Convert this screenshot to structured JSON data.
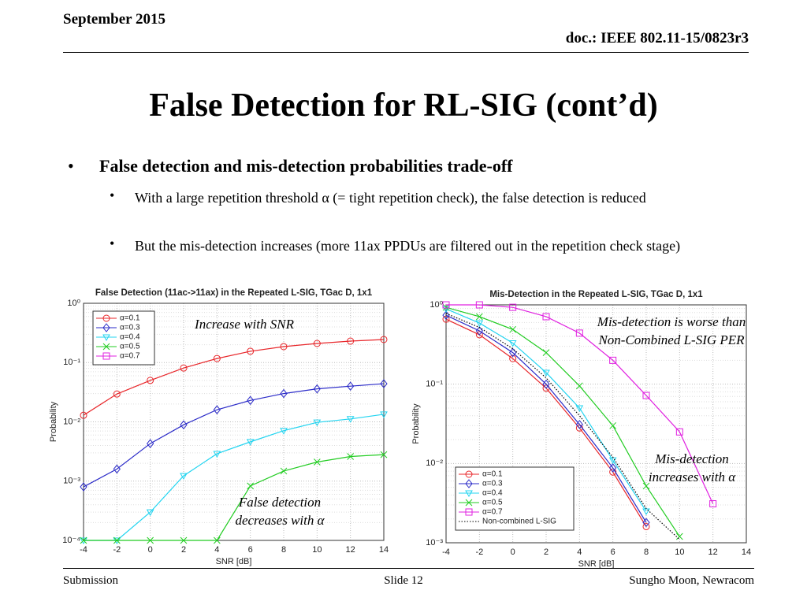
{
  "header": {
    "date": "September 2015",
    "doc": "doc.: IEEE 802.11-15/0823r3"
  },
  "title": "False Detection for RL-SIG (cont’d)",
  "bullets": [
    {
      "text": "False detection and mis-detection probabilities trade-off",
      "sub": [
        "With a large repetition threshold α (= tight repetition check), the false detection is reduced",
        "But the mis-detection increases (more 11ax PPDUs are filtered out in the repetition check stage)"
      ]
    }
  ],
  "chart_data": [
    {
      "type": "line",
      "title": "False Detection (11ac->11ax) in the Repeated L-SIG, TGac D, 1x1",
      "xlabel": "SNR [dB]",
      "ylabel": "Probability",
      "x": [
        -4,
        -2,
        0,
        2,
        4,
        6,
        8,
        10,
        12,
        14
      ],
      "xlim": [
        -4,
        14
      ],
      "xticks": [
        -4,
        -2,
        0,
        2,
        4,
        6,
        8,
        10,
        12,
        14
      ],
      "ylim": [
        0.0001,
        1
      ],
      "yticks": [
        {
          "value": 0.0001,
          "label": "10⁻⁴"
        },
        {
          "value": 0.001,
          "label": "10⁻³"
        },
        {
          "value": 0.01,
          "label": "10⁻²"
        },
        {
          "value": 0.1,
          "label": "10⁻¹"
        },
        {
          "value": 1,
          "label": "10⁰"
        }
      ],
      "log_y": true,
      "grid": true,
      "legend": "upper left",
      "series": [
        {
          "name": "α=0.1",
          "color": "#e8262a",
          "marker": "o",
          "values": [
            0.0129,
            0.0295,
            0.05,
            0.081,
            0.117,
            0.155,
            0.186,
            0.21,
            0.23,
            0.245
          ]
        },
        {
          "name": "α=0.3",
          "color": "#2a2ac8",
          "marker": "d",
          "values": [
            0.0008,
            0.0016,
            0.0043,
            0.0089,
            0.016,
            0.023,
            0.03,
            0.036,
            0.04,
            0.044
          ]
        },
        {
          "name": "α=0.4",
          "color": "#22d4f0",
          "marker": "v",
          "values": [
            0.0001,
            0.0001,
            0.0003,
            0.00123,
            0.0029,
            0.0046,
            0.0071,
            0.0098,
            0.0112,
            0.0134
          ]
        },
        {
          "name": "α=0.5",
          "color": "#22cc22",
          "marker": "x",
          "values": [
            0.0001,
            0.0001,
            0.0001,
            0.0001,
            0.0001,
            0.00083,
            0.00148,
            0.0021,
            0.0026,
            0.0028
          ]
        },
        {
          "name": "α=0.7",
          "color": "#e020e0",
          "marker": "s",
          "values": [
            null,
            null,
            null,
            null,
            null,
            null,
            null,
            null,
            null,
            null
          ]
        }
      ],
      "annotations": [
        "Increase with SNR",
        "False detection decreases with α"
      ]
    },
    {
      "type": "line",
      "title": "Mis-Detection in the Repeated L-SIG, TGac D, 1x1",
      "xlabel": "SNR [dB]",
      "ylabel": "Probability",
      "x": [
        -4,
        -2,
        0,
        2,
        4,
        6,
        8,
        10,
        12,
        14
      ],
      "xlim": [
        -4,
        14
      ],
      "xticks": [
        -4,
        -2,
        0,
        2,
        4,
        6,
        8,
        10,
        12,
        14
      ],
      "ylim": [
        0.001,
        1
      ],
      "yticks": [
        {
          "value": 0.001,
          "label": "10⁻³"
        },
        {
          "value": 0.01,
          "label": "10⁻²"
        },
        {
          "value": 0.1,
          "label": "10⁻¹"
        },
        {
          "value": 1,
          "label": "10⁰"
        }
      ],
      "log_y": true,
      "grid": true,
      "legend": "lower left",
      "series": [
        {
          "name": "α=0.1",
          "color": "#e8262a",
          "marker": "o",
          "values": [
            0.66,
            0.42,
            0.21,
            0.089,
            0.028,
            0.0078,
            0.0016,
            null,
            null,
            null
          ]
        },
        {
          "name": "α=0.3",
          "color": "#2a2ac8",
          "marker": "d",
          "values": [
            0.74,
            0.47,
            0.25,
            0.1,
            0.031,
            0.0088,
            0.0018,
            null,
            null,
            null
          ]
        },
        {
          "name": "α=0.4",
          "color": "#22d4f0",
          "marker": "v",
          "values": [
            0.89,
            0.59,
            0.33,
            0.14,
            0.05,
            0.011,
            0.0025,
            null,
            null,
            null
          ]
        },
        {
          "name": "α=0.5",
          "color": "#22cc22",
          "marker": "x",
          "values": [
            0.93,
            0.71,
            0.49,
            0.25,
            0.095,
            0.03,
            0.0052,
            0.0012,
            null,
            null
          ]
        },
        {
          "name": "α=0.7",
          "color": "#e020e0",
          "marker": "s",
          "values": [
            1,
            1,
            0.93,
            0.71,
            0.44,
            0.2,
            0.072,
            0.025,
            0.0031,
            null
          ]
        },
        {
          "name": "Non-combined L-SIG",
          "color": "#000000",
          "style": "dotted",
          "values": [
            0.78,
            0.52,
            0.28,
            0.12,
            0.04,
            0.012,
            0.0027,
            0.0011,
            null,
            null
          ]
        }
      ],
      "annotations": [
        "Mis-detection is worse than Non-Combined L-SIG PER",
        "Mis-detection increases with α"
      ]
    }
  ],
  "footer": {
    "left": "Submission",
    "center": "Slide 12",
    "right": "Sungho Moon, Newracom"
  }
}
